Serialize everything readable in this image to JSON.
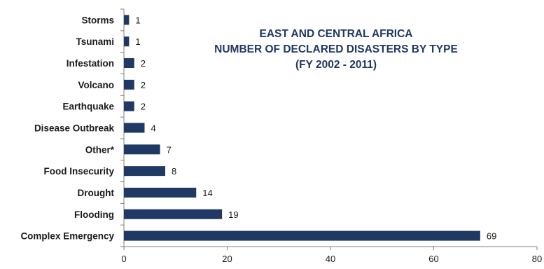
{
  "chart_data": {
    "type": "bar",
    "orientation": "horizontal",
    "title_lines": [
      "EAST AND CENTRAL AFRICA",
      "NUMBER OF DECLARED DISASTERS BY TYPE",
      "(FY 2002 - 2011)"
    ],
    "categories": [
      "Storms",
      "Tsunami",
      "Infestation",
      "Volcano",
      "Earthquake",
      "Disease Outbreak",
      "Other*",
      "Food Insecurity",
      "Drought",
      "Flooding",
      "Complex Emergency"
    ],
    "values": [
      1,
      1,
      2,
      2,
      2,
      4,
      7,
      8,
      14,
      19,
      69
    ],
    "xlim": [
      0,
      80
    ],
    "xticks": [
      0,
      20,
      40,
      60,
      80
    ],
    "xlabel": "",
    "ylabel": "",
    "grid": false,
    "legend": "none",
    "data_labels": true,
    "colors": {
      "bar": "#1f3864",
      "title": "#1f3864",
      "text": "#1a1a1a",
      "axis": "#7f7f7f"
    }
  }
}
